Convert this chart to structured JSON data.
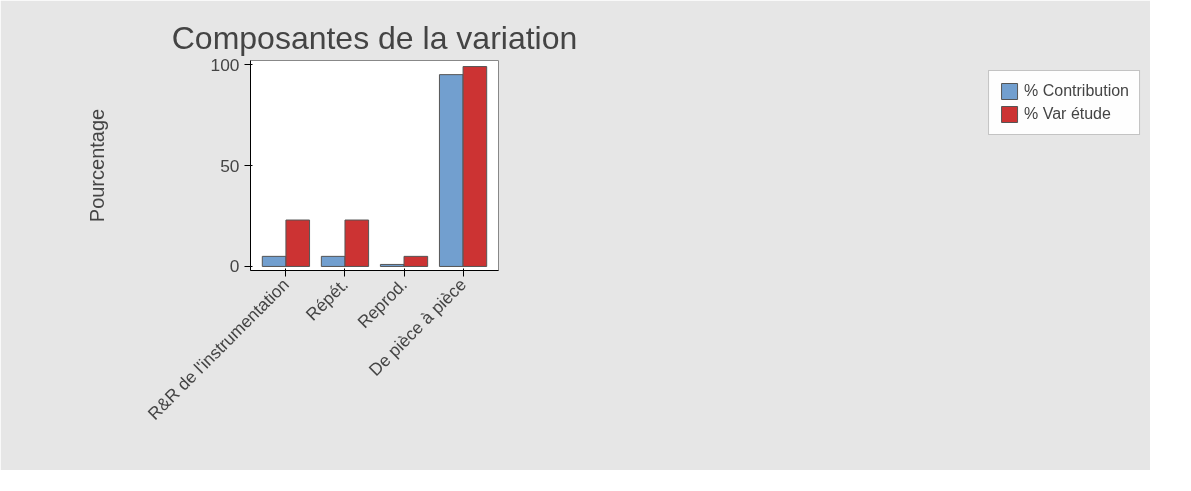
{
  "chart_data": {
    "type": "bar",
    "title": "Composantes de la variation",
    "ylabel": "Pourcentage",
    "categories": [
      "R&R de l'instrumentation",
      "Répét.",
      "Reprod.",
      "De pièce à pièce"
    ],
    "series": [
      {
        "name": "% Contribution",
        "color": "#729fcf",
        "values": [
          5,
          5,
          1,
          95
        ]
      },
      {
        "name": "% Var étude",
        "color": "#cc3333",
        "values": [
          23,
          23,
          5,
          99
        ]
      }
    ],
    "ylim": [
      -2,
      102
    ],
    "yticks": [
      0,
      50,
      100
    ],
    "grid": false,
    "legend": "right"
  }
}
